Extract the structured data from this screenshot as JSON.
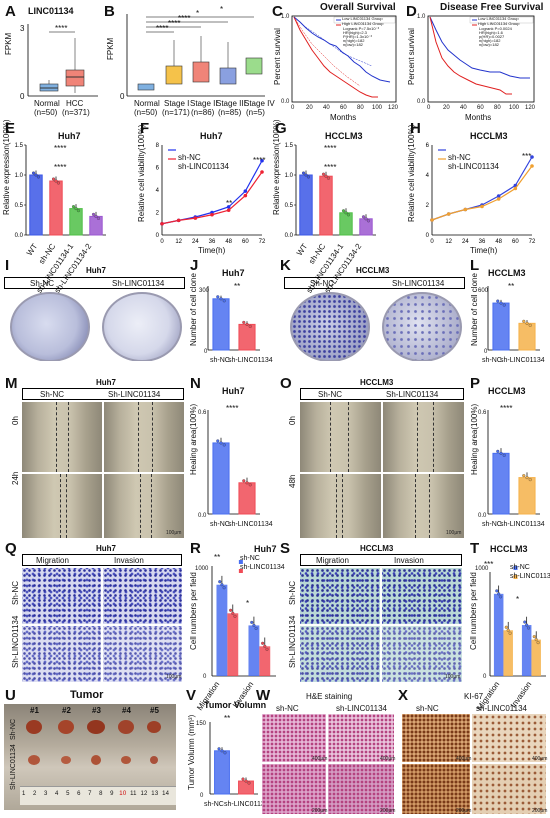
{
  "panels": {
    "A": {
      "letter": "A",
      "title": "LINC01134",
      "ylabel": "FPKM",
      "yticks": [
        "0",
        "1",
        "2",
        "3"
      ],
      "groups": [
        "Normal",
        "HCC"
      ],
      "ns": [
        "(n=50)",
        "(n=371)"
      ],
      "sig": "****",
      "colors": [
        "#4f86c6",
        "#e8473f"
      ]
    },
    "B": {
      "letter": "B",
      "ylabel": "FPKM",
      "yticks": [
        "0",
        "1",
        "2",
        "3"
      ],
      "groups": [
        "Normal",
        "Stage I",
        "Stage II",
        "Stage III",
        "Stage IV"
      ],
      "ns": [
        "(n=50)",
        "(n=171)",
        "(n=86)",
        "(n=85)",
        "(n=5)"
      ],
      "sigs": [
        "****",
        "****",
        "*",
        "****",
        "*"
      ]
    },
    "C": {
      "letter": "C",
      "title": "Overall Survival",
      "ylabel": "Percent survival",
      "xlabel": "Months",
      "legend": [
        "Low LINC01134 Group",
        "High LINC01134 Group"
      ],
      "stats": [
        "Logrank P=7.5x10⁻³",
        "HR(high)=2.3",
        "P(HR)=1.3x10⁻³",
        "n(high)=182",
        "n(low)=182"
      ],
      "xticks": [
        "0",
        "20",
        "40",
        "60",
        "80",
        "100",
        "120"
      ],
      "yticks": [
        "0.0",
        "0.2",
        "0.4",
        "0.6",
        "0.8",
        "1.0"
      ]
    },
    "D": {
      "letter": "D",
      "title": "Disease Free Survival",
      "ylabel": "Percent survival",
      "xlabel": "Months",
      "legend": [
        "Low LINC01134 Group",
        "High LINC01134 Group"
      ],
      "stats": [
        "Logrank P=0.0024",
        "HR(high)=1.6",
        "p(HR)=0.0027",
        "n(high)=182",
        "n(low)=182"
      ],
      "xticks": [
        "0",
        "20",
        "40",
        "60",
        "80",
        "100",
        "120"
      ],
      "yticks": [
        "0.0",
        "0.2",
        "0.4",
        "0.6",
        "0.8",
        "1.0"
      ]
    },
    "E": {
      "letter": "E",
      "title": "Huh7",
      "ylabel": "Relative expression(100%)",
      "categories": [
        "WT",
        "sh-NC",
        "sh-LINC01134-1",
        "sh-LINC01134-2"
      ],
      "sigs": [
        "****",
        "****"
      ]
    },
    "F": {
      "letter": "F",
      "title": "Huh7",
      "ylabel": "Relative cell viability(100%)",
      "xlabel": "Time(h)",
      "legend": [
        "sh-NC",
        "sh-LINC01134"
      ],
      "sigs": [
        "**",
        "****"
      ]
    },
    "G": {
      "letter": "G",
      "title": "HCCLM3",
      "ylabel": "Relative expression(100%)",
      "categories": [
        "WT",
        "sh-NC",
        "sh-LINC01134-1",
        "sh-LINC01134-2"
      ],
      "sigs": [
        "****",
        "****"
      ]
    },
    "H": {
      "letter": "H",
      "title": "HCCLM3",
      "ylabel": "Relative cell viability(100%)",
      "xlabel": "Time(h)",
      "legend": [
        "sh-NC",
        "sh-LINC01134"
      ],
      "sigs": [
        "***"
      ]
    },
    "I": {
      "letter": "I",
      "title": "Huh7",
      "labels": [
        "Sh-NC",
        "Sh-LINC01134"
      ]
    },
    "J": {
      "letter": "J",
      "title": "Huh7",
      "ylabel": "Number of cell clone",
      "categories": [
        "sh-NC",
        "sh-LINC01134"
      ],
      "sig": "**",
      "yticks": [
        "0",
        "100",
        "200",
        "300"
      ]
    },
    "K": {
      "letter": "K",
      "title": "HCCLM3",
      "labels": [
        "Sh-NC",
        "Sh-LINC01134"
      ]
    },
    "L": {
      "letter": "L",
      "title": "HCCLM3",
      "ylabel": "Number of cell clone",
      "categories": [
        "sh-NC",
        "sh-LINC01134"
      ],
      "sig": "**",
      "yticks": [
        "0",
        "200",
        "400",
        "600"
      ]
    },
    "M": {
      "letter": "M",
      "title": "Huh7",
      "labels": [
        "Sh-NC",
        "Sh-LINC01134"
      ],
      "rows": [
        "0h",
        "24h"
      ],
      "scale": "100μm"
    },
    "N": {
      "letter": "N",
      "title": "Huh7",
      "ylabel": "Healing area(100%)",
      "categories": [
        "sh-NC",
        "sh-LINC01134"
      ],
      "sig": "****",
      "yticks": [
        "0.0",
        "0.2",
        "0.4",
        "0.6"
      ]
    },
    "O": {
      "letter": "O",
      "title": "HCCLM3",
      "labels": [
        "Sh-NC",
        "Sh-LINC01134"
      ],
      "rows": [
        "0h",
        "48h"
      ],
      "scale": "100μm"
    },
    "P": {
      "letter": "P",
      "title": "HCCLM3",
      "ylabel": "Healing area(100%)",
      "categories": [
        "sh-NC",
        "sh-LINC01134"
      ],
      "sig": "****",
      "yticks": [
        "0.0",
        "0.2",
        "0.4",
        "0.6"
      ]
    },
    "Q": {
      "letter": "Q",
      "title": "Huh7",
      "labels": [
        "Migration",
        "Invasion"
      ],
      "rows": [
        "Sh-NC",
        "Sh-LINC01134"
      ],
      "scale": "100μm"
    },
    "R": {
      "letter": "R",
      "title": "Huh7",
      "ylabel": "Cell numbers per field",
      "categories": [
        "Migration",
        "Invasion"
      ],
      "legend": [
        "sh-NC",
        "sh-LINC01134"
      ],
      "sigs": [
        "**",
        "*"
      ],
      "yticks": [
        "0",
        "200",
        "400",
        "600",
        "800",
        "1000"
      ]
    },
    "S": {
      "letter": "S",
      "title": "HCCLM3",
      "labels": [
        "Migration",
        "Invasion"
      ],
      "rows": [
        "Sh-NC",
        "Sh-LINC01134"
      ],
      "scale": "100μm"
    },
    "T": {
      "letter": "T",
      "title": "HCCLM3",
      "ylabel": "Cell numbers per field",
      "categories": [
        "Migration",
        "Invasion"
      ],
      "legend": [
        "sh-NC",
        "sh-LINC01134"
      ],
      "sigs": [
        "***",
        "*"
      ],
      "yticks": [
        "0",
        "200",
        "400",
        "600",
        "800",
        "1000"
      ]
    },
    "U": {
      "letter": "U",
      "title": "Tumor",
      "tumors": [
        "#1",
        "#2",
        "#3",
        "#4",
        "#5"
      ],
      "rows": [
        "Sh-NC",
        "Sh-LINC01134"
      ],
      "ruler": [
        "1",
        "2",
        "3",
        "4",
        "5",
        "6",
        "7",
        "8",
        "9",
        "10",
        "11",
        "12",
        "13",
        "14"
      ]
    },
    "V": {
      "letter": "V",
      "title": "Tumor Volumn",
      "ylabel": "Tumor Volumn (mm³)",
      "categories": [
        "sh-NC",
        "sh-LINC01134"
      ],
      "sig": "**",
      "yticks": [
        "0",
        "50",
        "100",
        "150"
      ]
    },
    "W": {
      "letter": "W",
      "title": "H&E staining",
      "labels": [
        "sh-NC",
        "sh-LINC01134"
      ],
      "scales": [
        "400μm",
        "400μm",
        "200μm",
        "200μm"
      ]
    },
    "X": {
      "letter": "X",
      "title": "KI-67",
      "labels": [
        "sh-NC",
        "sh-LINC01134"
      ],
      "scales": [
        "400μm",
        "400μm",
        "200μm",
        "200μm"
      ]
    }
  },
  "chart_data": [
    {
      "panel": "E",
      "type": "bar",
      "categories": [
        "WT",
        "sh-NC",
        "sh-LINC01134-1",
        "sh-LINC01134-2"
      ],
      "values": [
        1.0,
        0.9,
        0.44,
        0.31
      ],
      "ylim": [
        0,
        1.5
      ],
      "yticks": [
        "0.0",
        "0.5",
        "1.0",
        "1.5"
      ],
      "colors": [
        "#3b57e6",
        "#f04b56",
        "#4fbf46",
        "#9b57d0"
      ]
    },
    {
      "panel": "F",
      "type": "line",
      "x": [
        0,
        12,
        24,
        36,
        48,
        60,
        72
      ],
      "series": [
        {
          "name": "sh-NC",
          "values": [
            1,
            1.3,
            1.6,
            2.0,
            2.5,
            3.9,
            6.6
          ]
        },
        {
          "name": "sh-LINC01134",
          "values": [
            1,
            1.3,
            1.5,
            1.8,
            2.2,
            3.5,
            5.6
          ]
        }
      ],
      "ylim": [
        0,
        8
      ],
      "yticks": [
        "0",
        "2",
        "4",
        "6",
        "8"
      ]
    },
    {
      "panel": "G",
      "type": "bar",
      "categories": [
        "WT",
        "sh-NC",
        "sh-LINC01134-1",
        "sh-LINC01134-2"
      ],
      "values": [
        1.0,
        0.98,
        0.37,
        0.27
      ],
      "ylim": [
        0,
        1.5
      ],
      "yticks": [
        "0.0",
        "0.5",
        "1.0",
        "1.5"
      ],
      "colors": [
        "#3b57e6",
        "#f04b56",
        "#4fbf46",
        "#9b57d0"
      ]
    },
    {
      "panel": "H",
      "type": "line",
      "x": [
        0,
        12,
        24,
        36,
        48,
        60,
        72
      ],
      "series": [
        {
          "name": "sh-NC",
          "values": [
            1,
            1.4,
            1.7,
            2.0,
            2.6,
            3.3,
            5.2
          ]
        },
        {
          "name": "sh-LINC01134",
          "values": [
            1,
            1.4,
            1.7,
            1.9,
            2.4,
            3.1,
            4.6
          ]
        }
      ],
      "ylim": [
        0,
        6
      ],
      "yticks": [
        "0",
        "2",
        "4",
        "6"
      ]
    },
    {
      "panel": "J",
      "type": "bar",
      "categories": [
        "sh-NC",
        "sh-LINC01134"
      ],
      "values": [
        240,
        120
      ],
      "ylim": [
        0,
        300
      ]
    },
    {
      "panel": "L",
      "type": "bar",
      "categories": [
        "sh-NC",
        "sh-LINC01134"
      ],
      "values": [
        440,
        250
      ],
      "ylim": [
        0,
        600
      ]
    },
    {
      "panel": "N",
      "type": "bar",
      "categories": [
        "sh-NC",
        "sh-LINC01134"
      ],
      "values": [
        0.41,
        0.18
      ],
      "ylim": [
        0,
        0.6
      ]
    },
    {
      "panel": "P",
      "type": "bar",
      "categories": [
        "sh-NC",
        "sh-LINC01134"
      ],
      "values": [
        0.35,
        0.21
      ],
      "ylim": [
        0,
        0.6
      ]
    },
    {
      "panel": "R",
      "type": "bar",
      "categories": [
        "Migration",
        "Invasion"
      ],
      "series": [
        {
          "name": "sh-NC",
          "values": [
            830,
            460
          ]
        },
        {
          "name": "sh-LINC01134",
          "values": [
            570,
            270
          ]
        }
      ],
      "ylim": [
        0,
        1000
      ]
    },
    {
      "panel": "T",
      "type": "bar",
      "categories": [
        "Migration",
        "Invasion"
      ],
      "series": [
        {
          "name": "sh-NC",
          "values": [
            790,
            490
          ]
        },
        {
          "name": "sh-LINC01134",
          "values": [
            440,
            350
          ]
        }
      ],
      "ylim": [
        0,
        1000
      ]
    },
    {
      "panel": "V",
      "type": "bar",
      "categories": [
        "sh-NC",
        "sh-LINC01134"
      ],
      "values": [
        90,
        27
      ],
      "ylim": [
        0,
        150
      ]
    }
  ]
}
